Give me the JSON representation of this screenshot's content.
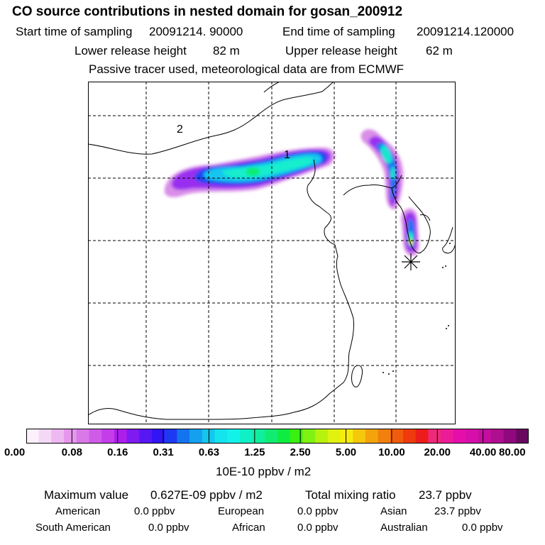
{
  "header": {
    "title": "CO  source contributions in nested domain for gosan_200912",
    "start_label": "Start time of sampling",
    "start_value": "20091214. 90000",
    "end_label": "End time of sampling",
    "end_value": "20091214.120000",
    "lower_label": "Lower release height",
    "lower_value": "82 m",
    "upper_label": "Upper release height",
    "upper_value": "62 m",
    "tracer_note": "Passive tracer used, meteorological data are from ECMWF"
  },
  "map": {
    "markers": [
      {
        "label": "1",
        "kind": "source-label"
      },
      {
        "label": "2",
        "kind": "source-label"
      }
    ],
    "receptor_symbol": "asterisk",
    "frame_color": "#000000",
    "grid_color": "#000000"
  },
  "colorbar": {
    "tick_labels": [
      "0.00",
      "0.08",
      "0.16",
      "0.31",
      "0.63",
      "1.25",
      "2.50",
      "5.00",
      "10.00",
      "20.00",
      "40.00",
      "80.00"
    ],
    "unit": "10E-10 ppbv / m2",
    "colors": [
      "#fbf0fb",
      "#f4d8f6",
      "#eeb8f1",
      "#e696ee",
      "#d979e7",
      "#cf5ce8",
      "#c43de9",
      "#ad1eec",
      "#7f1af0",
      "#5617f3",
      "#3214f4",
      "#1d3af2",
      "#1474f0",
      "#14a0ef",
      "#14c6ee",
      "#14e4ee",
      "#12f2e8",
      "#10f0c6",
      "#10ef9e",
      "#10ec72",
      "#0eec42",
      "#3aef12",
      "#7ef210",
      "#b6f20e",
      "#e0f20e",
      "#f6ec0c",
      "#f6c80c",
      "#f4a30c",
      "#f2800c",
      "#f05c0c",
      "#ee3a0c",
      "#ec1c1c",
      "#ee2a78",
      "#ec1c98",
      "#e40eaa",
      "#d60eaa",
      "#c40e9e",
      "#ae0e90",
      "#90087c",
      "#6a0860"
    ]
  },
  "footer": {
    "max_label": "Maximum value",
    "max_value": "0.627E-09 ppbv / m2",
    "total_label": "Total mixing ratio",
    "total_value": "23.7 ppbv",
    "regions": [
      {
        "name": "American",
        "value": "0.0 ppbv"
      },
      {
        "name": "European",
        "value": "0.0 ppbv"
      },
      {
        "name": "Asian",
        "value": "23.7 ppbv"
      },
      {
        "name": "South American",
        "value": "0.0 ppbv"
      },
      {
        "name": "African",
        "value": "0.0 ppbv"
      },
      {
        "name": "Australian",
        "value": "0.0 ppbv"
      }
    ]
  }
}
